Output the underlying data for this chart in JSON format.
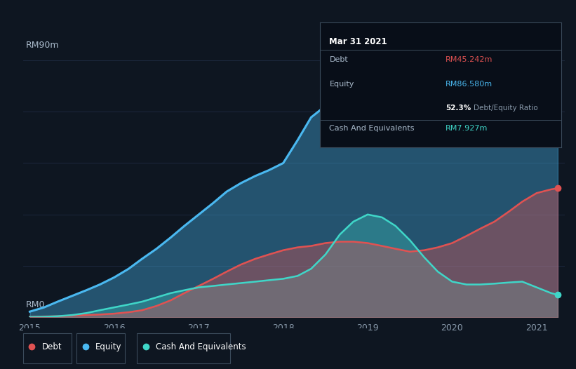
{
  "bg_color": "#0e1621",
  "plot_bg_color": "#0e1621",
  "title_label": "RM90m",
  "bottom_label": "RM0",
  "tooltip": {
    "date": "Mar 31 2021",
    "debt_label": "Debt",
    "debt_value": "RM45.242m",
    "equity_label": "Equity",
    "equity_value": "RM86.580m",
    "ratio": "52.3%",
    "ratio_label": "Debt/Equity Ratio",
    "cash_label": "Cash And Equivalents",
    "cash_value": "RM7.927m"
  },
  "debt_color": "#e05252",
  "equity_color": "#4ab8f0",
  "cash_color": "#3fd6c8",
  "years": [
    2015.0,
    2015.17,
    2015.33,
    2015.5,
    2015.67,
    2015.83,
    2016.0,
    2016.17,
    2016.33,
    2016.5,
    2016.67,
    2016.83,
    2017.0,
    2017.17,
    2017.33,
    2017.5,
    2017.67,
    2017.83,
    2018.0,
    2018.17,
    2018.33,
    2018.5,
    2018.67,
    2018.83,
    2019.0,
    2019.17,
    2019.33,
    2019.5,
    2019.67,
    2019.83,
    2020.0,
    2020.17,
    2020.33,
    2020.5,
    2020.67,
    2020.83,
    2021.0,
    2021.17,
    2021.25
  ],
  "equity": [
    2.0,
    3.5,
    5.5,
    7.5,
    9.5,
    11.5,
    14.0,
    17.0,
    20.5,
    24.0,
    28.0,
    32.0,
    36.0,
    40.0,
    44.0,
    47.0,
    49.5,
    51.5,
    54.0,
    62.0,
    70.0,
    74.0,
    76.5,
    77.5,
    78.5,
    79.5,
    80.0,
    79.5,
    79.0,
    78.5,
    78.0,
    79.0,
    80.0,
    81.0,
    82.5,
    84.0,
    85.5,
    86.2,
    86.5
  ],
  "debt": [
    0.2,
    0.3,
    0.4,
    0.6,
    0.8,
    1.0,
    1.3,
    1.8,
    2.5,
    4.0,
    6.0,
    8.5,
    11.0,
    13.5,
    16.0,
    18.5,
    20.5,
    22.0,
    23.5,
    24.5,
    25.0,
    26.0,
    26.5,
    26.5,
    26.0,
    25.0,
    24.0,
    23.0,
    23.5,
    24.5,
    26.0,
    28.5,
    31.0,
    33.5,
    37.0,
    40.5,
    43.5,
    44.8,
    45.2
  ],
  "cash": [
    0.1,
    0.2,
    0.4,
    0.8,
    1.5,
    2.5,
    3.5,
    4.5,
    5.5,
    7.0,
    8.5,
    9.5,
    10.5,
    11.0,
    11.5,
    12.0,
    12.5,
    13.0,
    13.5,
    14.5,
    17.0,
    22.0,
    29.0,
    33.5,
    36.0,
    35.0,
    32.0,
    27.0,
    21.0,
    16.0,
    12.5,
    11.5,
    11.5,
    11.8,
    12.2,
    12.5,
    10.5,
    8.5,
    7.9
  ],
  "xlim": [
    2014.92,
    2021.33
  ],
  "ylim": [
    0,
    93
  ],
  "xticks": [
    2015,
    2016,
    2017,
    2018,
    2019,
    2020,
    2021
  ],
  "grid_color": "#253350",
  "grid_alpha": 0.7,
  "legend_items": [
    "Debt",
    "Equity",
    "Cash And Equivalents"
  ],
  "legend_colors": [
    "#e05252",
    "#4ab8f0",
    "#3fd6c8"
  ]
}
